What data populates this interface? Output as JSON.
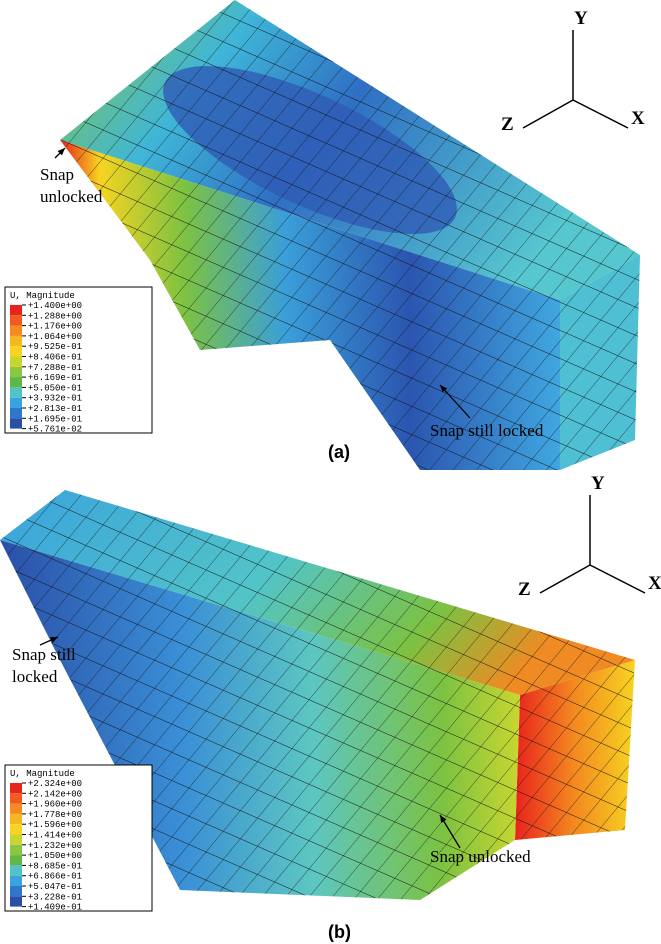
{
  "panels": [
    {
      "label": "(a)",
      "axes": {
        "y": "Y",
        "z": "Z",
        "x": "X"
      },
      "annotations": [
        [
          "Snap",
          "unlocked"
        ],
        [
          "Snap still locked"
        ]
      ],
      "legend": {
        "title": "U, Magnitude",
        "labels": [
          "+1.400e+00",
          "+1.288e+00",
          "+1.176e+00",
          "+1.064e+00",
          "+9.525e-01",
          "+8.406e-01",
          "+7.288e-01",
          "+6.169e-01",
          "+5.050e-01",
          "+3.932e-01",
          "+2.813e-01",
          "+1.695e-01",
          "+5.761e-02"
        ]
      }
    },
    {
      "label": "(b)",
      "axes": {
        "y": "Y",
        "z": "Z",
        "x": "X"
      },
      "annotations": [
        [
          "Snap still",
          "locked"
        ],
        [
          "Snap unlocked"
        ]
      ],
      "legend": {
        "title": "U, Magnitude",
        "labels": [
          "+2.324e+00",
          "+2.142e+00",
          "+1.960e+00",
          "+1.778e+00",
          "+1.596e+00",
          "+1.414e+00",
          "+1.232e+00",
          "+1.050e+00",
          "+8.685e-01",
          "+6.866e-01",
          "+5.047e-01",
          "+3.228e-01",
          "+1.409e-01"
        ]
      }
    }
  ]
}
